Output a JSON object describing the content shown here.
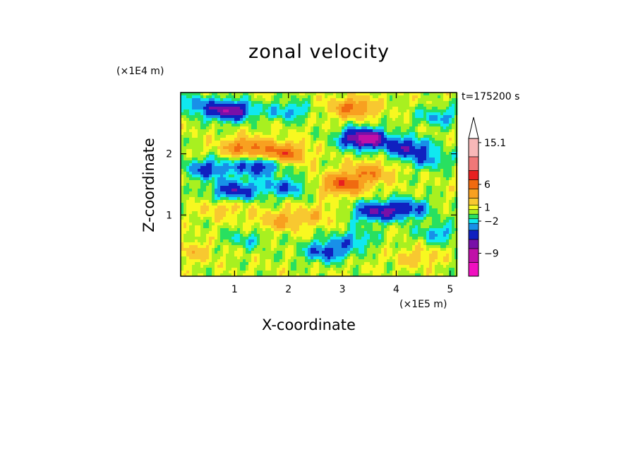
{
  "chart_data": {
    "type": "heatmap",
    "title": "zonal velocity",
    "xlabel": "X-coordinate",
    "ylabel": "Z-coordinate",
    "x_multiplier": "(×1E5 m)",
    "y_multiplier": "(×1E4 m)",
    "time_label": "t=175200 s",
    "xlim": [
      0,
      5.12
    ],
    "ylim": [
      0,
      3.0
    ],
    "x_ticks": [
      "1",
      "2",
      "3",
      "4",
      "5"
    ],
    "y_ticks": [
      "1",
      "2"
    ],
    "x_tick_values": [
      1,
      2,
      3,
      4,
      5
    ],
    "y_tick_values": [
      1,
      2
    ],
    "colorbar": {
      "labels": [
        "15.1",
        "6",
        "1",
        "−2",
        "−9"
      ],
      "label_values": [
        15.1,
        6,
        1,
        -2,
        -9
      ],
      "range": [
        -14,
        16
      ],
      "levels": [
        {
          "min": 12,
          "color": "#f8b8b8"
        },
        {
          "min": 9,
          "color": "#f07878"
        },
        {
          "min": 7,
          "color": "#e82020"
        },
        {
          "min": 5,
          "color": "#f06a10"
        },
        {
          "min": 3,
          "color": "#f8a020"
        },
        {
          "min": 1.5,
          "color": "#f8c830"
        },
        {
          "min": 0.5,
          "color": "#f8f820"
        },
        {
          "min": -0.5,
          "color": "#a8f020"
        },
        {
          "min": -1.5,
          "color": "#28e060"
        },
        {
          "min": -2.5,
          "color": "#10e8f0"
        },
        {
          "min": -4,
          "color": "#1890e8"
        },
        {
          "min": -6,
          "color": "#1020c0"
        },
        {
          "min": -8,
          "color": "#7810a8"
        },
        {
          "min": -11,
          "color": "#c010a8"
        },
        {
          "min": -99,
          "color": "#f010c0"
        }
      ]
    },
    "features": [
      {
        "x": 0.9,
        "z": 2.7,
        "amp": -8
      },
      {
        "x": 1.9,
        "z": 2.0,
        "amp": 6
      },
      {
        "x": 1.2,
        "z": 2.1,
        "amp": 5
      },
      {
        "x": 0.25,
        "z": 2.8,
        "amp": -3
      },
      {
        "x": 0.5,
        "z": 1.75,
        "amp": -5
      },
      {
        "x": 1.45,
        "z": 1.8,
        "amp": -6
      },
      {
        "x": 1.0,
        "z": 1.4,
        "amp": -6
      },
      {
        "x": 1.95,
        "z": 1.45,
        "amp": -4
      },
      {
        "x": 2.0,
        "z": 2.7,
        "amp": -3
      },
      {
        "x": 3.2,
        "z": 2.75,
        "amp": 5
      },
      {
        "x": 3.4,
        "z": 2.25,
        "amp": -10
      },
      {
        "x": 4.2,
        "z": 2.1,
        "amp": -6
      },
      {
        "x": 3.5,
        "z": 1.7,
        "amp": 4
      },
      {
        "x": 3.0,
        "z": 1.5,
        "amp": 6
      },
      {
        "x": 4.6,
        "z": 1.9,
        "amp": -3
      },
      {
        "x": 4.8,
        "z": 2.6,
        "amp": -3
      },
      {
        "x": 3.6,
        "z": 1.05,
        "amp": -6
      },
      {
        "x": 4.2,
        "z": 1.1,
        "amp": -5
      },
      {
        "x": 3.2,
        "z": 0.6,
        "amp": -3
      },
      {
        "x": 2.7,
        "z": 0.4,
        "amp": -5
      },
      {
        "x": 4.8,
        "z": 0.7,
        "amp": -3
      },
      {
        "x": 1.85,
        "z": 0.9,
        "amp": 3
      },
      {
        "x": 0.8,
        "z": 1.1,
        "amp": 2
      },
      {
        "x": 2.5,
        "z": 1.0,
        "amp": 2
      },
      {
        "x": 0.2,
        "z": 0.4,
        "amp": 2
      },
      {
        "x": 4.4,
        "z": 0.3,
        "amp": 2
      },
      {
        "x": 1.2,
        "z": 0.6,
        "amp": -2
      }
    ]
  }
}
